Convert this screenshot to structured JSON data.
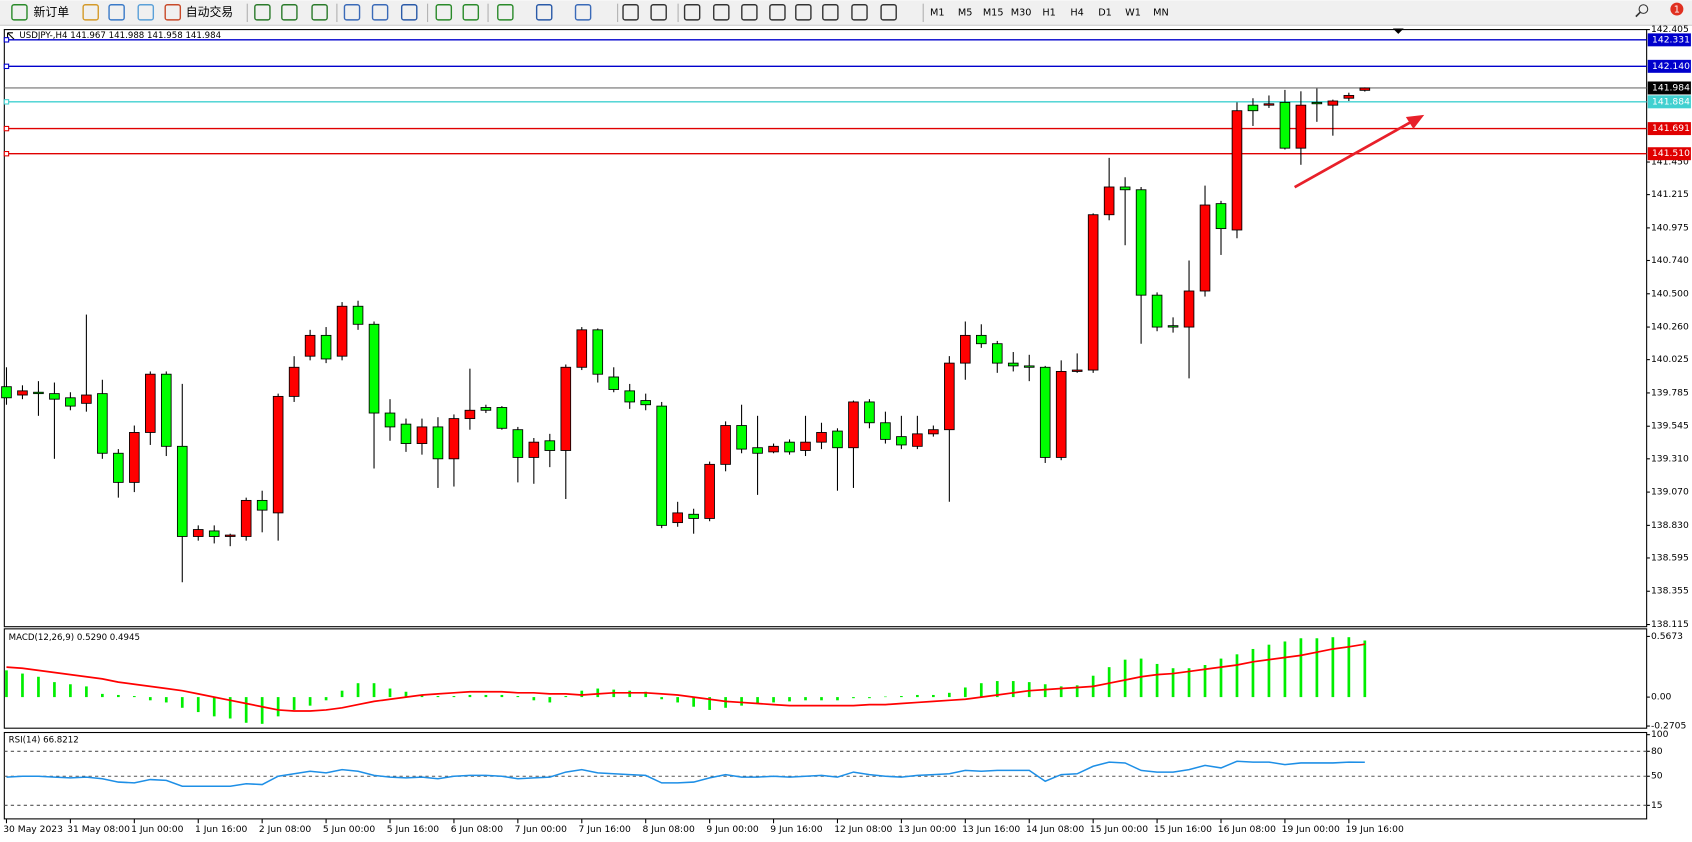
{
  "toolbar": {
    "new_order": "新订单",
    "auto_trading": "自动交易",
    "timeframes": [
      "M1",
      "M5",
      "M15",
      "M30",
      "H1",
      "H4",
      "D1",
      "W1",
      "MN"
    ]
  },
  "notifications": 1,
  "chart_data": [
    {
      "type": "candlestick",
      "title": "USDJPY-,H4  141.967 141.988 141.958 141.984",
      "categories": [
        "30 May 2023",
        null,
        null,
        null,
        "31 May 08:00",
        null,
        null,
        null,
        "1 Jun 00:00",
        null,
        null,
        null,
        "1 Jun 16:00",
        null,
        null,
        null,
        "2 Jun 08:00",
        null,
        null,
        null,
        "5 Jun 00:00",
        null,
        null,
        null,
        "5 Jun 16:00",
        null,
        null,
        null,
        "6 Jun 08:00",
        null,
        null,
        null,
        "7 Jun 00:00",
        null,
        null,
        null,
        "7 Jun 16:00",
        null,
        null,
        null,
        "8 Jun 08:00",
        null,
        null,
        null,
        "9 Jun 00:00",
        null,
        null,
        null,
        "9 Jun 16:00",
        null,
        null,
        null,
        "12 Jun 08:00",
        null,
        null,
        null,
        "13 Jun 00:00",
        null,
        null,
        null,
        "13 Jun 16:00",
        null,
        null,
        null,
        "14 Jun 08:00",
        null,
        null,
        null,
        "15 Jun 00:00",
        null,
        null,
        null,
        "15 Jun 16:00",
        null,
        null,
        null,
        "16 Jun 08:00",
        null,
        null,
        null,
        "19 Jun 00:00",
        null,
        null,
        null,
        "19 Jun 16:00",
        null
      ],
      "open": [
        139.83,
        139.77,
        139.79,
        139.78,
        139.75,
        139.71,
        139.78,
        139.35,
        139.14,
        139.5,
        139.92,
        139.4,
        138.75,
        138.79,
        138.75,
        138.75,
        139.01,
        138.92,
        139.76,
        140.05,
        140.2,
        140.05,
        140.41,
        140.28,
        139.64,
        139.56,
        139.42,
        139.54,
        139.31,
        139.6,
        139.68,
        139.68,
        139.52,
        139.32,
        139.44,
        139.37,
        139.97,
        140.24,
        139.9,
        139.8,
        139.73,
        139.69,
        138.85,
        138.91,
        138.88,
        139.27,
        139.55,
        139.39,
        139.36,
        139.43,
        139.37,
        139.43,
        139.51,
        139.39,
        139.72,
        139.57,
        139.47,
        139.4,
        139.49,
        139.52,
        140.0,
        140.2,
        140.14,
        140.0,
        139.98,
        139.97,
        139.32,
        139.94,
        139.95,
        141.07,
        141.27,
        141.25,
        140.49,
        140.27,
        140.26,
        140.52,
        141.15,
        140.96,
        141.86,
        141.86,
        141.88,
        141.55,
        141.88,
        141.86,
        141.91,
        141.967
      ],
      "high": [
        139.97,
        139.84,
        139.87,
        139.86,
        139.79,
        140.35,
        139.88,
        139.38,
        139.55,
        139.94,
        139.94,
        139.85,
        138.83,
        138.83,
        138.77,
        139.03,
        139.08,
        139.78,
        140.05,
        140.24,
        140.26,
        140.44,
        140.45,
        140.3,
        139.74,
        139.6,
        139.6,
        139.61,
        139.63,
        139.96,
        139.7,
        139.69,
        139.54,
        139.46,
        139.49,
        139.99,
        140.26,
        140.25,
        139.97,
        139.85,
        139.78,
        139.72,
        139.0,
        138.95,
        139.29,
        139.58,
        139.7,
        139.62,
        139.42,
        139.45,
        139.62,
        139.57,
        139.53,
        139.73,
        139.74,
        139.65,
        139.62,
        139.62,
        139.55,
        140.05,
        140.3,
        140.28,
        140.16,
        140.08,
        140.06,
        139.98,
        140.02,
        140.07,
        141.08,
        141.48,
        141.34,
        141.27,
        140.51,
        140.33,
        140.74,
        141.28,
        141.17,
        141.88,
        141.91,
        141.93,
        141.97,
        141.96,
        141.98,
        141.9,
        141.95,
        141.988
      ],
      "low": [
        139.7,
        139.74,
        139.62,
        139.31,
        139.66,
        139.65,
        139.31,
        139.03,
        139.07,
        139.41,
        139.33,
        138.42,
        138.72,
        138.7,
        138.68,
        138.72,
        138.78,
        138.72,
        139.72,
        140.02,
        140.0,
        140.02,
        140.24,
        139.24,
        139.44,
        139.36,
        139.34,
        139.1,
        139.11,
        139.52,
        139.64,
        139.52,
        139.14,
        139.13,
        139.25,
        139.02,
        139.95,
        139.86,
        139.79,
        139.67,
        139.66,
        138.81,
        138.82,
        138.77,
        138.86,
        139.22,
        139.35,
        139.05,
        139.35,
        139.34,
        139.33,
        139.38,
        139.08,
        139.1,
        139.53,
        139.42,
        139.38,
        139.38,
        139.47,
        139.0,
        139.88,
        140.11,
        139.93,
        139.94,
        139.87,
        139.28,
        139.3,
        139.93,
        139.93,
        141.03,
        140.85,
        140.14,
        140.23,
        140.22,
        139.89,
        140.48,
        140.78,
        140.9,
        141.71,
        141.84,
        141.54,
        141.43,
        141.74,
        141.64,
        141.89,
        141.958
      ],
      "close": [
        139.75,
        139.8,
        139.78,
        139.74,
        139.69,
        139.77,
        139.35,
        139.14,
        139.5,
        139.92,
        139.4,
        138.75,
        138.8,
        138.75,
        138.76,
        139.01,
        138.94,
        139.76,
        139.97,
        140.2,
        140.03,
        140.41,
        140.28,
        139.64,
        139.54,
        139.42,
        139.54,
        139.31,
        139.6,
        139.66,
        139.66,
        139.53,
        139.32,
        139.43,
        139.37,
        139.97,
        140.24,
        139.92,
        139.81,
        139.72,
        139.7,
        138.83,
        138.92,
        138.88,
        139.27,
        139.55,
        139.38,
        139.35,
        139.4,
        139.36,
        139.43,
        139.5,
        139.39,
        139.72,
        139.57,
        139.45,
        139.41,
        139.49,
        139.52,
        140.0,
        140.2,
        140.14,
        140.0,
        139.98,
        139.97,
        139.32,
        139.94,
        139.95,
        141.07,
        141.27,
        141.25,
        140.49,
        140.26,
        140.26,
        140.52,
        141.14,
        140.97,
        141.82,
        141.82,
        141.87,
        141.55,
        141.86,
        141.87,
        141.89,
        141.93,
        141.984
      ],
      "up_color": "#ff0000",
      "down_color": "#00ff00",
      "ylim": [
        138.115,
        142.405
      ],
      "yticks": [
        142.405,
        {
          "value": 141.45,
          "label": "141.450"
        },
        141.215,
        140.975,
        {
          "value": 140.74,
          "label": "140.740"
        },
        {
          "value": 140.5,
          "label": "140.500"
        },
        {
          "value": 140.26,
          "label": "140.260"
        },
        140.025,
        139.785,
        139.545,
        {
          "value": 139.31,
          "label": "139.310"
        },
        {
          "value": 139.07,
          "label": "139.070"
        },
        {
          "value": 138.83,
          "label": "138.830"
        },
        138.595,
        138.355,
        138.115
      ],
      "levels": [
        {
          "value": 142.331,
          "color": "#0000cc"
        },
        {
          "value": 142.14,
          "label": "142.140",
          "color": "#0000cc"
        },
        {
          "value": 141.884,
          "color": "#40d0d0"
        },
        {
          "value": 141.691,
          "color": "#e00000"
        },
        {
          "value": 141.51,
          "label": "141.510",
          "color": "#e00000"
        }
      ],
      "current_price": 141.984
    },
    {
      "type": "macd",
      "title": "MACD(12,26,9) 0.5290 0.4945",
      "values": [
        0.25,
        0.22,
        0.19,
        0.14,
        0.12,
        0.1,
        0.03,
        0.02,
        0.01,
        -0.03,
        -0.05,
        -0.1,
        -0.14,
        -0.18,
        -0.2,
        -0.24,
        -0.25,
        -0.18,
        -0.12,
        -0.08,
        -0.03,
        0.06,
        0.13,
        0.13,
        0.08,
        0.05,
        0.02,
        0.01,
        0.01,
        0.02,
        0.02,
        0.02,
        0.01,
        -0.03,
        -0.05,
        0.01,
        0.06,
        0.08,
        0.07,
        0.06,
        0.05,
        -0.02,
        -0.05,
        -0.09,
        -0.12,
        -0.1,
        -0.08,
        -0.06,
        -0.05,
        -0.04,
        -0.03,
        -0.03,
        -0.03,
        -0.01,
        -0.01,
        0.005,
        0.01,
        0.02,
        0.02,
        0.04,
        0.09,
        0.13,
        0.15,
        0.15,
        0.14,
        0.12,
        0.1,
        0.11,
        0.2,
        0.28,
        0.35,
        0.36,
        0.31,
        0.27,
        0.27,
        0.3,
        0.36,
        0.4,
        0.45,
        0.49,
        0.52,
        0.55,
        0.55,
        0.56,
        0.56,
        0.529
      ],
      "signal": [
        0.28,
        0.27,
        0.25,
        0.23,
        0.21,
        0.19,
        0.17,
        0.14,
        0.12,
        0.1,
        0.08,
        0.06,
        0.03,
        0.0,
        -0.03,
        -0.06,
        -0.09,
        -0.12,
        -0.13,
        -0.13,
        -0.12,
        -0.1,
        -0.07,
        -0.04,
        -0.02,
        0.0,
        0.02,
        0.03,
        0.04,
        0.05,
        0.05,
        0.05,
        0.04,
        0.04,
        0.03,
        0.03,
        0.02,
        0.03,
        0.04,
        0.04,
        0.04,
        0.03,
        0.02,
        0.0,
        -0.02,
        -0.04,
        -0.05,
        -0.06,
        -0.07,
        -0.08,
        -0.08,
        -0.08,
        -0.08,
        -0.08,
        -0.07,
        -0.07,
        -0.06,
        -0.05,
        -0.04,
        -0.03,
        -0.02,
        0.0,
        0.02,
        0.04,
        0.06,
        0.07,
        0.08,
        0.09,
        0.1,
        0.13,
        0.16,
        0.19,
        0.21,
        0.22,
        0.24,
        0.26,
        0.28,
        0.3,
        0.33,
        0.35,
        0.37,
        0.39,
        0.42,
        0.45,
        0.47,
        0.4945
      ],
      "color": "#00ee00",
      "signal_color": "#ff0000",
      "ylim": [
        -0.2705,
        0.5673
      ],
      "yticks": [
        0.5673,
        {
          "value": 0,
          "label": "0.00"
        },
        -0.2705
      ]
    },
    {
      "type": "line",
      "title": "RSI(14) 66.8212",
      "values": [
        49,
        50,
        50,
        49,
        48,
        49,
        47,
        43,
        42,
        46,
        45,
        38,
        38,
        38,
        38,
        41,
        40,
        50,
        53,
        56,
        54,
        58,
        56,
        51,
        49,
        48,
        49,
        47,
        50,
        51,
        51,
        50,
        47,
        48,
        49,
        55,
        58,
        54,
        53,
        52,
        51,
        42,
        42,
        43,
        48,
        52,
        49,
        49,
        50,
        49,
        50,
        51,
        49,
        55,
        52,
        50,
        49,
        51,
        52,
        53,
        57,
        56,
        57,
        57,
        57,
        44,
        52,
        53,
        62,
        67,
        66,
        57,
        55,
        55,
        58,
        63,
        60,
        68,
        67,
        67,
        64,
        66,
        66,
        66,
        67,
        66.8212
      ],
      "color": "#1e8fe6",
      "ylim": [
        0,
        100
      ],
      "yticks": [
        100,
        80,
        50,
        15
      ]
    }
  ]
}
